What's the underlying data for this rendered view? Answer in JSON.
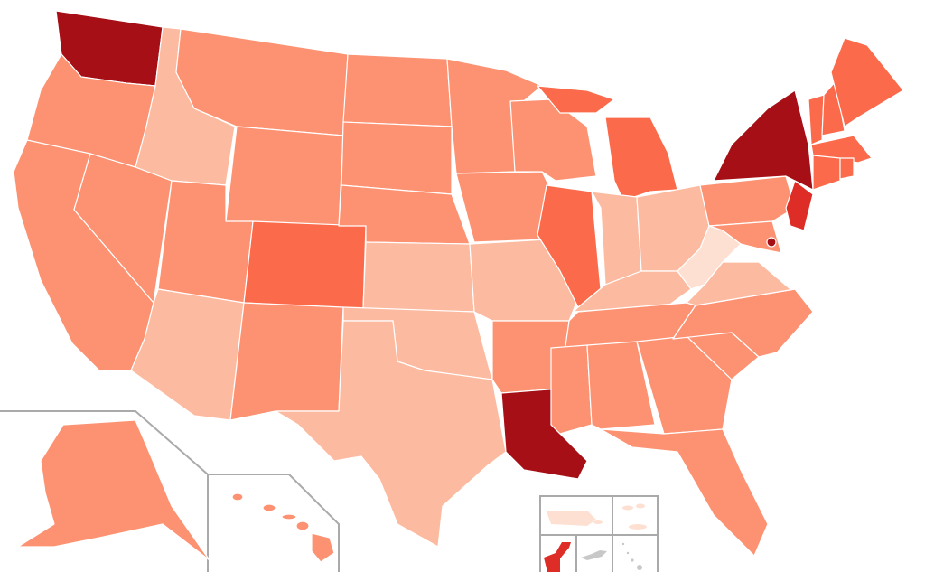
{
  "map": {
    "scale_colors": {
      "level_1": "#fee0d2",
      "level_2": "#fcbba1",
      "level_3": "#fc9272",
      "level_4": "#fb6a4a",
      "level_5": "#de2d26",
      "level_6": "#a50f15",
      "no_data": "#c8c8c8"
    },
    "regions": {
      "WA": "level_6",
      "NY": "level_6",
      "LA": "level_6",
      "DC": "level_6",
      "NJ": "level_5",
      "GU": "level_5",
      "CO": "level_4",
      "IL": "level_4",
      "MI": "level_4",
      "ME": "level_4",
      "VT": "level_4",
      "NH": "level_4",
      "MA": "level_4",
      "CT": "level_4",
      "RI": "level_4",
      "OR": "level_3",
      "CA": "level_3",
      "NV": "level_3",
      "MT": "level_3",
      "WY": "level_3",
      "UT": "level_3",
      "NM": "level_3",
      "ND": "level_3",
      "SD": "level_3",
      "NE": "level_3",
      "MN": "level_3",
      "WI": "level_3",
      "IA": "level_3",
      "AR": "level_3",
      "MS": "level_3",
      "AL": "level_3",
      "GA": "level_3",
      "FL": "level_3",
      "SC": "level_3",
      "NC": "level_3",
      "TN": "level_3",
      "PA": "level_3",
      "MD": "level_3",
      "AK": "level_3",
      "HI": "level_3",
      "ID": "level_2",
      "AZ": "level_2",
      "TX": "level_2",
      "KS": "level_2",
      "OK": "level_2",
      "MO": "level_2",
      "IN": "level_2",
      "OH": "level_2",
      "KY": "level_2",
      "VA": "level_2",
      "WV": "level_1",
      "PR": "level_1",
      "VI": "level_1",
      "AS": "no_data",
      "MP": "no_data"
    }
  }
}
